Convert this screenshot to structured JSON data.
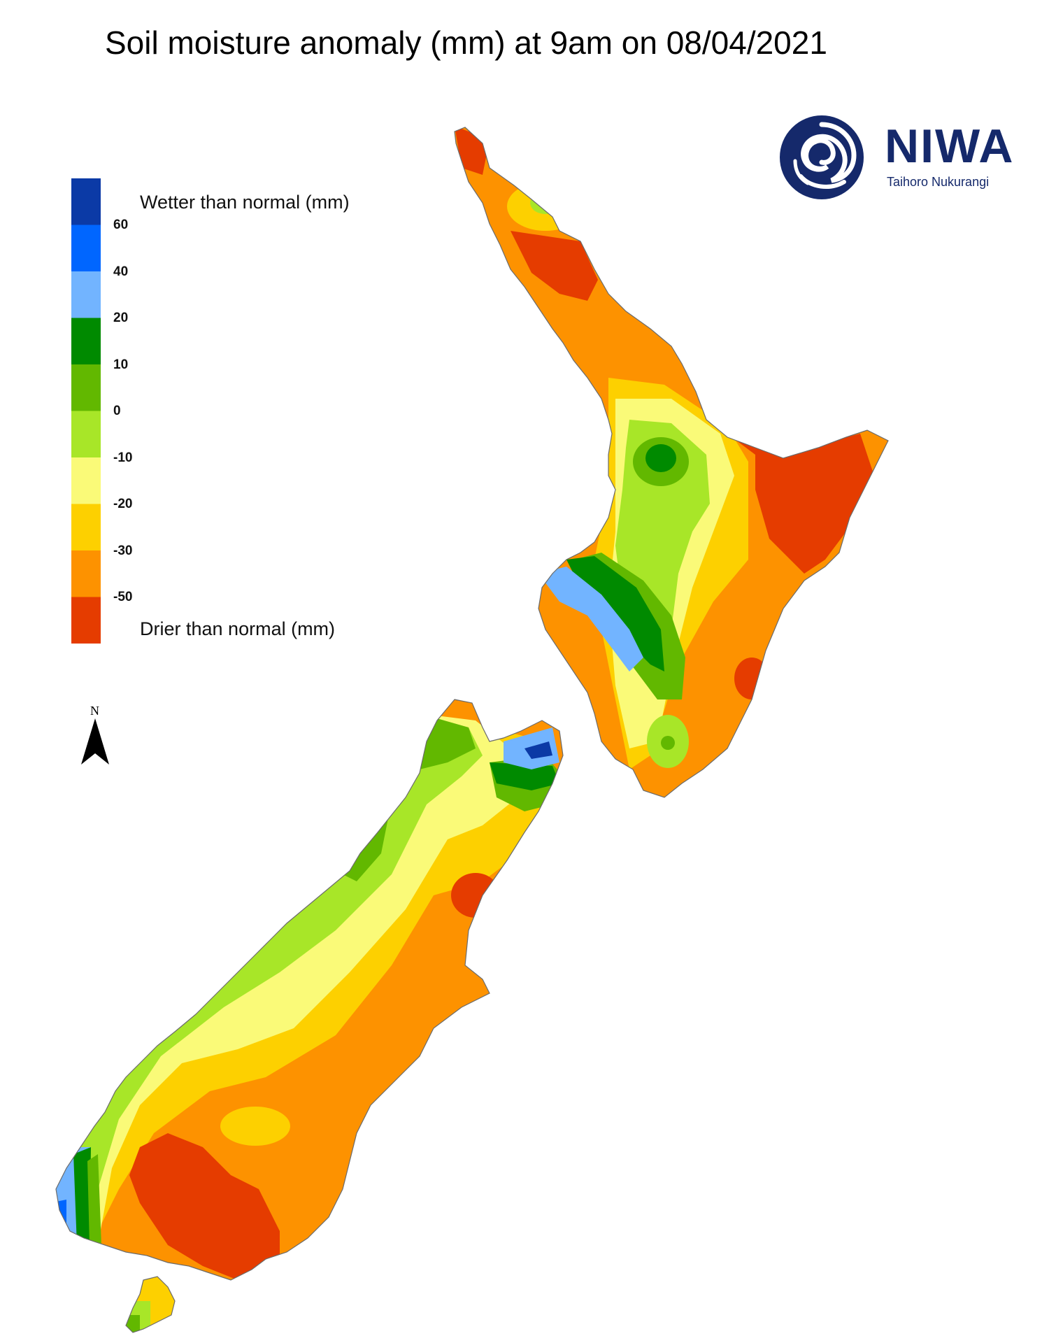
{
  "title": "Soil moisture anomaly (mm) at 9am on 08/04/2021",
  "logo": {
    "name": "NIWA",
    "tagline": "Taihoro Nukurangi",
    "color": "#15296b"
  },
  "legend": {
    "wetter_label": "Wetter than normal (mm)",
    "drier_label": "Drier than normal (mm)",
    "ticks": [
      "60",
      "40",
      "20",
      "10",
      "0",
      "-10",
      "-20",
      "-30",
      "-50"
    ],
    "colors": [
      "#0b3aa6",
      "#0066ff",
      "#72b4ff",
      "#008a00",
      "#62b800",
      "#a8e628",
      "#fafa78",
      "#fdd000",
      "#fd9200",
      "#e53c00"
    ]
  },
  "north_arrow": {
    "letter": "N"
  },
  "map": {
    "region": "New Zealand",
    "fill_by_class": {
      "very_dry": "#e53c00",
      "dry": "#fd9200",
      "moderately_dry": "#fdd000",
      "slightly_dry": "#fafa78",
      "near_normal_dry": "#a8e628",
      "near_normal_wet": "#62b800",
      "wet": "#008a00",
      "wetter": "#72b4ff",
      "very_wet": "#0066ff"
    }
  }
}
